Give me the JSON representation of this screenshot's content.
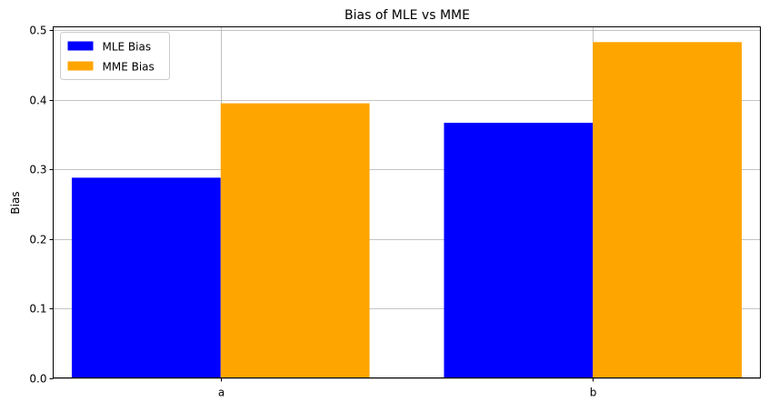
{
  "chart_data": {
    "type": "bar",
    "title": "Bias of MLE vs MME",
    "xlabel": "",
    "ylabel": "Bias",
    "categories": [
      "a",
      "b"
    ],
    "series": [
      {
        "name": "MLE Bias",
        "values": [
          0.288,
          0.367
        ],
        "color": "#0000ff"
      },
      {
        "name": "MME Bias",
        "values": [
          0.395,
          0.483
        ],
        "color": "#ffa500"
      }
    ],
    "ylim": [
      0,
      0.505
    ],
    "yticks": [
      0.0,
      0.1,
      0.2,
      0.3,
      0.4,
      0.5
    ],
    "ytick_labels": [
      "0.0",
      "0.1",
      "0.2",
      "0.3",
      "0.4",
      "0.5"
    ],
    "grid": true,
    "legend_position": "top-left"
  }
}
